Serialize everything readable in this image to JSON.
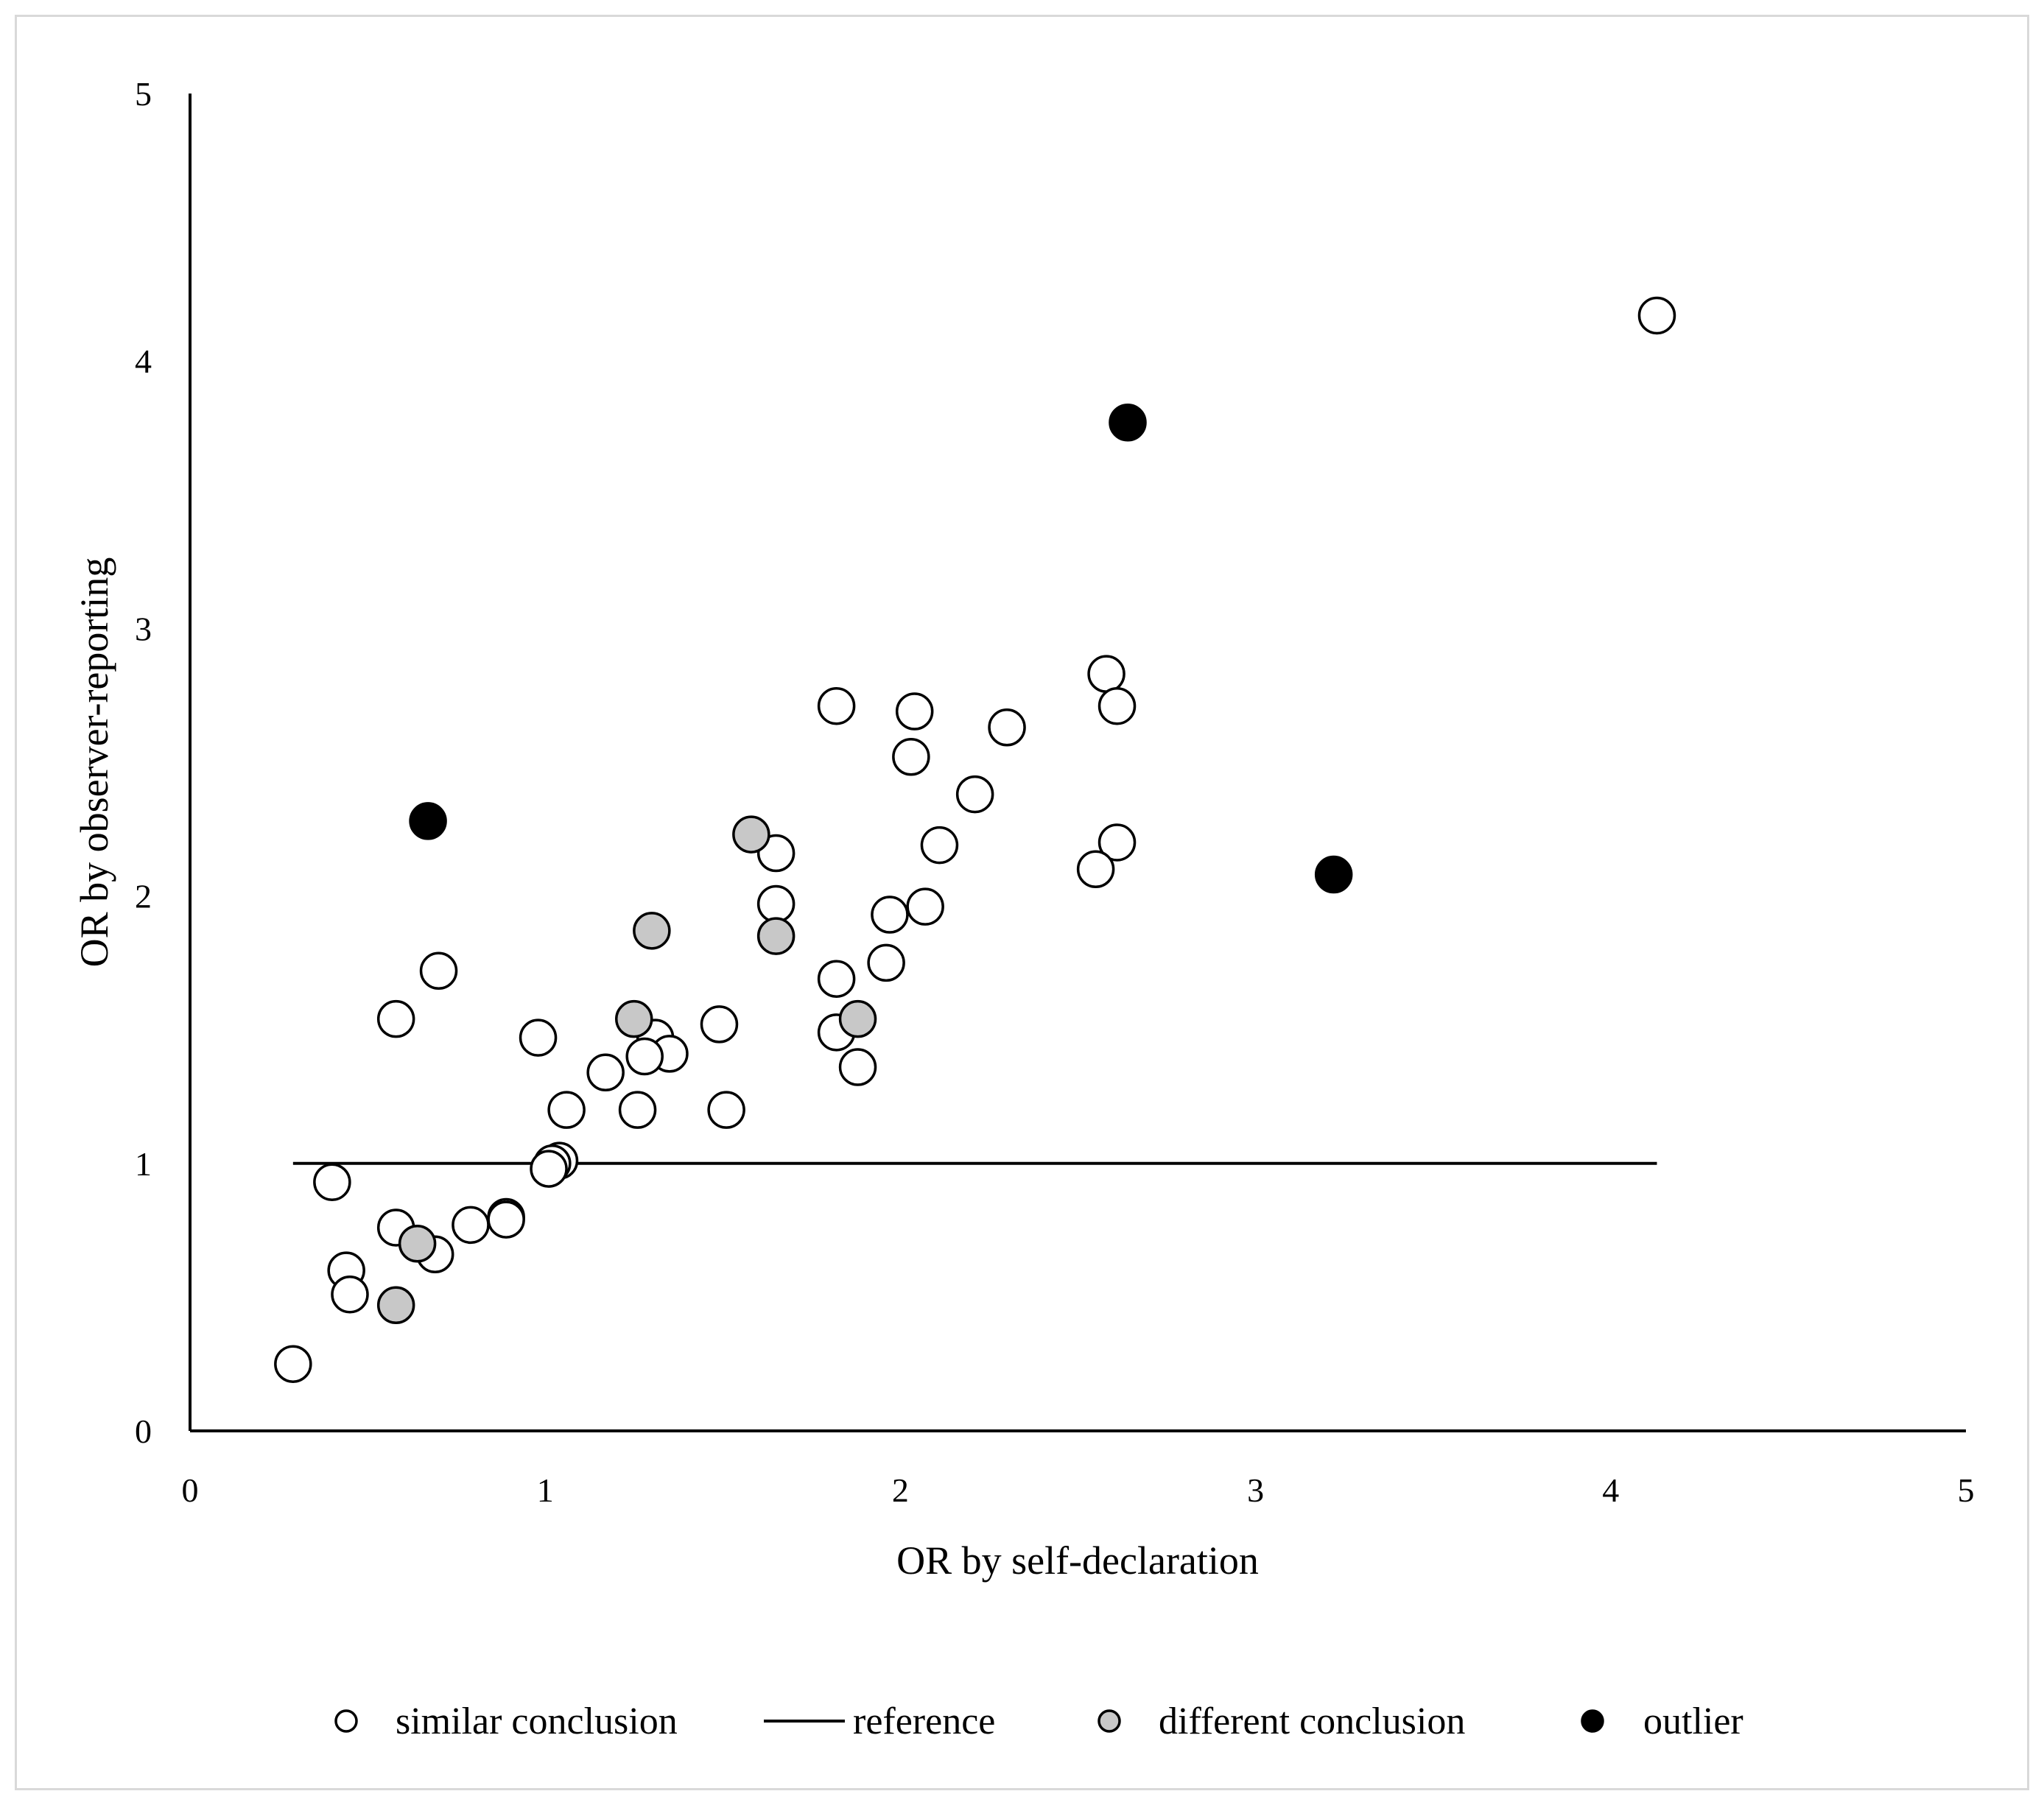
{
  "chart_data": {
    "type": "scatter",
    "xlabel": "OR by self-declaration",
    "ylabel": "OR by observer-reporting",
    "xlim": [
      0,
      5
    ],
    "ylim": [
      0,
      5
    ],
    "xticks": [
      "0",
      "1",
      "2",
      "3",
      "4",
      "5"
    ],
    "yticks": [
      "0",
      "1",
      "2",
      "3",
      "4",
      "5"
    ],
    "grid": false,
    "legend_position": "bottom",
    "reference_line": {
      "y": 1,
      "x_start": 0.29,
      "x_end": 4.13,
      "name": "reference"
    },
    "series": [
      {
        "name": "similar conclusion",
        "fill": "#ffffff",
        "stroke": "#000000",
        "points": [
          [
            4.13,
            4.17
          ],
          [
            2.58,
            2.83
          ],
          [
            2.61,
            2.71
          ],
          [
            2.3,
            2.63
          ],
          [
            2.04,
            2.69
          ],
          [
            2.03,
            2.52
          ],
          [
            1.82,
            2.71
          ],
          [
            2.21,
            2.38
          ],
          [
            2.11,
            2.19
          ],
          [
            2.61,
            2.2
          ],
          [
            2.55,
            2.1
          ],
          [
            1.65,
            2.16
          ],
          [
            1.65,
            1.97
          ],
          [
            1.97,
            1.93
          ],
          [
            2.07,
            1.96
          ],
          [
            1.96,
            1.75
          ],
          [
            1.82,
            1.69
          ],
          [
            1.82,
            1.49
          ],
          [
            1.88,
            1.36
          ],
          [
            1.49,
            1.52
          ],
          [
            1.51,
            1.2
          ],
          [
            1.31,
            1.47
          ],
          [
            1.35,
            1.41
          ],
          [
            1.28,
            1.4
          ],
          [
            1.26,
            1.2
          ],
          [
            1.17,
            1.34
          ],
          [
            1.06,
            1.2
          ],
          [
            0.98,
            1.47
          ],
          [
            1.04,
            1.01
          ],
          [
            1.02,
            1.0
          ],
          [
            1.01,
            0.98
          ],
          [
            0.7,
            1.72
          ],
          [
            0.58,
            1.54
          ],
          [
            0.4,
            0.93
          ],
          [
            0.58,
            0.76
          ],
          [
            0.79,
            0.77
          ],
          [
            0.89,
            0.8
          ],
          [
            0.89,
            0.79
          ],
          [
            0.69,
            0.66
          ],
          [
            0.44,
            0.6
          ],
          [
            0.45,
            0.51
          ],
          [
            0.29,
            0.25
          ]
        ]
      },
      {
        "name": "different conclusion",
        "fill": "#c8c8c8",
        "stroke": "#000000",
        "points": [
          [
            1.58,
            2.23
          ],
          [
            1.3,
            1.87
          ],
          [
            1.65,
            1.85
          ],
          [
            1.88,
            1.54
          ],
          [
            1.25,
            1.54
          ],
          [
            0.64,
            0.7
          ],
          [
            0.58,
            0.47
          ]
        ]
      },
      {
        "name": "outlier",
        "fill": "#000000",
        "stroke": "#000000",
        "points": [
          [
            2.64,
            3.77
          ],
          [
            0.67,
            2.28
          ],
          [
            3.22,
            2.08
          ]
        ]
      }
    ]
  },
  "legend": {
    "items": [
      {
        "label": "similar conclusion",
        "kind": "open-circle"
      },
      {
        "label": "reference",
        "kind": "line"
      },
      {
        "label": "different conclusion",
        "kind": "gray-circle"
      },
      {
        "label": "outlier",
        "kind": "black-circle"
      }
    ]
  }
}
